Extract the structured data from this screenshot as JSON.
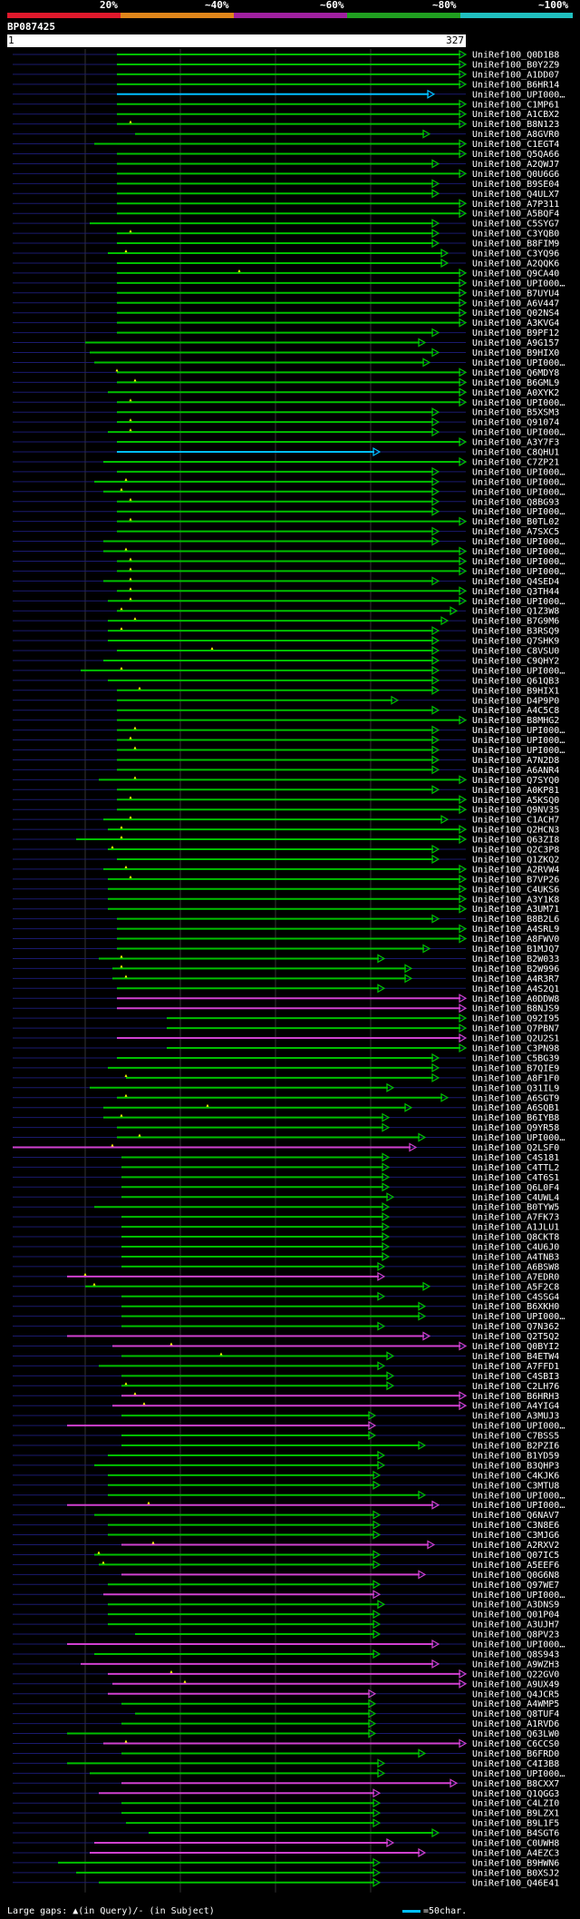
{
  "query": {
    "name": "BP087425",
    "start": "1",
    "end": "327",
    "length": 327
  },
  "scale": {
    "labels": [
      "20%",
      "~40%",
      "~60%",
      "~80%",
      "~100%"
    ],
    "colors": [
      "#e0192c",
      "#e0861a",
      "#a020a0",
      "#20a020",
      "#20c0c0"
    ]
  },
  "colors": {
    "high": "#00c000",
    "mid": "#d040d0",
    "cyan": "#00bfff",
    "gap_marker": "#ffff00"
  },
  "footer": {
    "gaps_text": "Large gaps: ▲(in Query)/- (in Subject)",
    "legend_text": "=50char."
  },
  "hits": [
    {
      "name": "UniRef100_Q0D1B8",
      "qs": 0.23,
      "qe": 1.0,
      "c": "g"
    },
    {
      "name": "UniRef100_B0Y2Z9",
      "qs": 0.23,
      "qe": 1.0,
      "c": "g"
    },
    {
      "name": "UniRef100_A1DD07",
      "qs": 0.23,
      "qe": 1.0,
      "c": "g"
    },
    {
      "name": "UniRef100_B6HR14",
      "qs": 0.23,
      "qe": 1.0,
      "c": "g"
    },
    {
      "name": "UniRef100_UPI000…",
      "qs": 0.23,
      "qe": 0.93,
      "c": "c"
    },
    {
      "name": "UniRef100_C1MP61",
      "qs": 0.23,
      "qe": 1.0,
      "c": "g"
    },
    {
      "name": "UniRef100_A1CBX2",
      "qs": 0.23,
      "qe": 1.0,
      "c": "g"
    },
    {
      "name": "UniRef100_B8N123",
      "qs": 0.23,
      "qe": 1.0,
      "c": "g",
      "gap": 0.26
    },
    {
      "name": "UniRef100_A8GVR0",
      "qs": 0.27,
      "qe": 0.92,
      "c": "g"
    },
    {
      "name": "UniRef100_C1EGT4",
      "qs": 0.18,
      "qe": 1.0,
      "c": "g"
    },
    {
      "name": "UniRef100_Q5QA66",
      "qs": 0.23,
      "qe": 1.0,
      "c": "g"
    },
    {
      "name": "UniRef100_A2QWJ7",
      "qs": 0.23,
      "qe": 0.94,
      "c": "g"
    },
    {
      "name": "UniRef100_Q0U6G6",
      "qs": 0.23,
      "qe": 1.0,
      "c": "g"
    },
    {
      "name": "UniRef100_B9SE04",
      "qs": 0.23,
      "qe": 0.94,
      "c": "g"
    },
    {
      "name": "UniRef100_Q4ULX7",
      "qs": 0.23,
      "qe": 0.94,
      "c": "g"
    },
    {
      "name": "UniRef100_A7P311",
      "qs": 0.23,
      "qe": 1.0,
      "c": "g"
    },
    {
      "name": "UniRef100_A5BQF4",
      "qs": 0.23,
      "qe": 1.0,
      "c": "g"
    },
    {
      "name": "UniRef100_C5SYG7",
      "qs": 0.17,
      "qe": 0.94,
      "c": "g"
    },
    {
      "name": "UniRef100_C3YQB0",
      "qs": 0.23,
      "qe": 0.94,
      "c": "g",
      "gap": 0.26
    },
    {
      "name": "UniRef100_B8FIM9",
      "qs": 0.23,
      "qe": 0.94,
      "c": "g"
    },
    {
      "name": "UniRef100_C3YQ96",
      "qs": 0.21,
      "qe": 0.96,
      "c": "g",
      "gap": 0.25
    },
    {
      "name": "UniRef100_A2QQK6",
      "qs": 0.23,
      "qe": 0.96,
      "c": "g"
    },
    {
      "name": "UniRef100_Q9CA40",
      "qs": 0.23,
      "qe": 1.0,
      "c": "g",
      "gap": 0.5
    },
    {
      "name": "UniRef100_UPI000…",
      "qs": 0.23,
      "qe": 1.0,
      "c": "g"
    },
    {
      "name": "UniRef100_B7UYU4",
      "qs": 0.23,
      "qe": 1.0,
      "c": "g"
    },
    {
      "name": "UniRef100_A6V447",
      "qs": 0.23,
      "qe": 1.0,
      "c": "g"
    },
    {
      "name": "UniRef100_Q02NS4",
      "qs": 0.23,
      "qe": 1.0,
      "c": "g"
    },
    {
      "name": "UniRef100_A3KVG4",
      "qs": 0.23,
      "qe": 1.0,
      "c": "g"
    },
    {
      "name": "UniRef100_B9PF12",
      "qs": 0.23,
      "qe": 0.94,
      "c": "g"
    },
    {
      "name": "UniRef100_A9G157",
      "qs": 0.16,
      "qe": 0.91,
      "c": "g"
    },
    {
      "name": "UniRef100_B9HIX0",
      "qs": 0.17,
      "qe": 0.94,
      "c": "g"
    },
    {
      "name": "UniRef100_UPI000…",
      "qs": 0.18,
      "qe": 0.92,
      "c": "g"
    },
    {
      "name": "UniRef100_Q6MDY8",
      "qs": 0.23,
      "qe": 1.0,
      "c": "g",
      "gap": 0.23
    },
    {
      "name": "UniRef100_B6GML9",
      "qs": 0.23,
      "qe": 1.0,
      "c": "g",
      "gap": 0.27
    },
    {
      "name": "UniRef100_A0XYK2",
      "qs": 0.21,
      "qe": 1.0,
      "c": "g"
    },
    {
      "name": "UniRef100_UPI000…",
      "qs": 0.23,
      "qe": 1.0,
      "c": "g",
      "gap": 0.26
    },
    {
      "name": "UniRef100_B5XSM3",
      "qs": 0.23,
      "qe": 0.94,
      "c": "g"
    },
    {
      "name": "UniRef100_Q91074",
      "qs": 0.23,
      "qe": 0.94,
      "c": "g",
      "gap": 0.26
    },
    {
      "name": "UniRef100_UPI000…",
      "qs": 0.21,
      "qe": 0.94,
      "c": "g",
      "gap": 0.26
    },
    {
      "name": "UniRef100_A3Y7F3",
      "qs": 0.23,
      "qe": 1.0,
      "c": "g"
    },
    {
      "name": "UniRef100_C8QHU1",
      "qs": 0.23,
      "qe": 0.81,
      "c": "c"
    },
    {
      "name": "UniRef100_C7ZP21",
      "qs": 0.2,
      "qe": 1.0,
      "c": "g"
    },
    {
      "name": "UniRef100_UPI000…",
      "qs": 0.23,
      "qe": 0.94,
      "c": "g"
    },
    {
      "name": "UniRef100_UPI000…",
      "qs": 0.18,
      "qe": 0.94,
      "c": "g",
      "gap": 0.25
    },
    {
      "name": "UniRef100_UPI000…",
      "qs": 0.2,
      "qe": 0.94,
      "c": "g",
      "gap": 0.24
    },
    {
      "name": "UniRef100_Q8BG93",
      "qs": 0.23,
      "qe": 0.94,
      "c": "g",
      "gap": 0.26
    },
    {
      "name": "UniRef100_UPI000…",
      "qs": 0.23,
      "qe": 0.94,
      "c": "g"
    },
    {
      "name": "UniRef100_B0TL02",
      "qs": 0.23,
      "qe": 1.0,
      "c": "g",
      "gap": 0.26
    },
    {
      "name": "UniRef100_A7SXC5",
      "qs": 0.23,
      "qe": 0.94,
      "c": "g"
    },
    {
      "name": "UniRef100_UPI000…",
      "qs": 0.2,
      "qe": 0.94,
      "c": "g"
    },
    {
      "name": "UniRef100_UPI000…",
      "qs": 0.2,
      "qe": 1.0,
      "c": "g",
      "gap": 0.25
    },
    {
      "name": "UniRef100_UPI000…",
      "qs": 0.23,
      "qe": 1.0,
      "c": "g",
      "gap": 0.26
    },
    {
      "name": "UniRef100_UPI000…",
      "qs": 0.23,
      "qe": 1.0,
      "c": "g",
      "gap": 0.26
    },
    {
      "name": "UniRef100_Q4SED4",
      "qs": 0.2,
      "qe": 0.94,
      "c": "g",
      "gap": 0.26
    },
    {
      "name": "UniRef100_Q3TH44",
      "qs": 0.23,
      "qe": 1.0,
      "c": "g",
      "gap": 0.26
    },
    {
      "name": "UniRef100_UPI000…",
      "qs": 0.21,
      "qe": 1.0,
      "c": "g",
      "gap": 0.26
    },
    {
      "name": "UniRef100_Q1Z3W8",
      "qs": 0.23,
      "qe": 0.98,
      "c": "g",
      "gap": 0.24
    },
    {
      "name": "UniRef100_B7G9M6",
      "qs": 0.21,
      "qe": 0.96,
      "c": "g",
      "gap": 0.27
    },
    {
      "name": "UniRef100_B3RSQ9",
      "qs": 0.21,
      "qe": 0.94,
      "c": "g",
      "gap": 0.24
    },
    {
      "name": "UniRef100_Q7SHK9",
      "qs": 0.21,
      "qe": 0.94,
      "c": "g"
    },
    {
      "name": "UniRef100_C8VSU0",
      "qs": 0.23,
      "qe": 0.94,
      "c": "g",
      "gap": 0.44
    },
    {
      "name": "UniRef100_C9QHY2",
      "qs": 0.2,
      "qe": 0.94,
      "c": "g"
    },
    {
      "name": "UniRef100_UPI000…",
      "qs": 0.15,
      "qe": 0.94,
      "c": "g",
      "gap": 0.24
    },
    {
      "name": "UniRef100_Q61QB3",
      "qs": 0.21,
      "qe": 0.94,
      "c": "g"
    },
    {
      "name": "UniRef100_B9HIX1",
      "qs": 0.23,
      "qe": 0.94,
      "c": "g",
      "gap": 0.28
    },
    {
      "name": "UniRef100_D4P9P0",
      "qs": 0.23,
      "qe": 0.85,
      "c": "g"
    },
    {
      "name": "UniRef100_A4C5C8",
      "qs": 0.23,
      "qe": 0.94,
      "c": "g"
    },
    {
      "name": "UniRef100_B8MHG2",
      "qs": 0.23,
      "qe": 1.0,
      "c": "g"
    },
    {
      "name": "UniRef100_UPI000…",
      "qs": 0.23,
      "qe": 0.94,
      "c": "g",
      "gap": 0.27
    },
    {
      "name": "UniRef100_UPI000…",
      "qs": 0.23,
      "qe": 0.94,
      "c": "g",
      "gap": 0.26
    },
    {
      "name": "UniRef100_UPI000…",
      "qs": 0.23,
      "qe": 0.94,
      "c": "g",
      "gap": 0.27
    },
    {
      "name": "UniRef100_A7N2D8",
      "qs": 0.23,
      "qe": 0.94,
      "c": "g"
    },
    {
      "name": "UniRef100_A6ANR4",
      "qs": 0.23,
      "qe": 0.94,
      "c": "g"
    },
    {
      "name": "UniRef100_Q7SYQ0",
      "qs": 0.19,
      "qe": 1.0,
      "c": "g",
      "gap": 0.27
    },
    {
      "name": "UniRef100_A0KP81",
      "qs": 0.23,
      "qe": 0.94,
      "c": "g"
    },
    {
      "name": "UniRef100_A5KSQ0",
      "qs": 0.23,
      "qe": 1.0,
      "c": "g",
      "gap": 0.26
    },
    {
      "name": "UniRef100_Q9NV35",
      "qs": 0.23,
      "qe": 1.0,
      "c": "g"
    },
    {
      "name": "UniRef100_C1ACH7",
      "qs": 0.2,
      "qe": 0.96,
      "c": "g",
      "gap": 0.26
    },
    {
      "name": "UniRef100_Q2HCN3",
      "qs": 0.21,
      "qe": 1.0,
      "c": "g",
      "gap": 0.24
    },
    {
      "name": "UniRef100_Q63ZI8",
      "qs": 0.14,
      "qe": 1.0,
      "c": "g",
      "gap": 0.24
    },
    {
      "name": "UniRef100_Q2C3P8",
      "qs": 0.21,
      "qe": 0.94,
      "c": "g",
      "gap": 0.22
    },
    {
      "name": "UniRef100_Q1ZKQ2",
      "qs": 0.23,
      "qe": 0.94,
      "c": "g"
    },
    {
      "name": "UniRef100_A2RVW4",
      "qs": 0.2,
      "qe": 1.0,
      "c": "g",
      "gap": 0.25
    },
    {
      "name": "UniRef100_B7VP26",
      "qs": 0.21,
      "qe": 1.0,
      "c": "g",
      "gap": 0.26
    },
    {
      "name": "UniRef100_C4UKS6",
      "qs": 0.21,
      "qe": 1.0,
      "c": "g"
    },
    {
      "name": "UniRef100_A3Y1K8",
      "qs": 0.21,
      "qe": 1.0,
      "c": "g"
    },
    {
      "name": "UniRef100_A3UM71",
      "qs": 0.21,
      "qe": 1.0,
      "c": "g"
    },
    {
      "name": "UniRef100_B8B2L6",
      "qs": 0.23,
      "qe": 0.94,
      "c": "g"
    },
    {
      "name": "UniRef100_A4SRL9",
      "qs": 0.23,
      "qe": 1.0,
      "c": "g"
    },
    {
      "name": "UniRef100_A8FWV0",
      "qs": 0.23,
      "qe": 1.0,
      "c": "g"
    },
    {
      "name": "UniRef100_B1MJQ7",
      "qs": 0.23,
      "qe": 0.92,
      "c": "g"
    },
    {
      "name": "UniRef100_B2W033",
      "qs": 0.19,
      "qe": 0.82,
      "c": "g",
      "gap": 0.24
    },
    {
      "name": "UniRef100_B2W996",
      "qs": 0.22,
      "qe": 0.88,
      "c": "g",
      "gap": 0.24
    },
    {
      "name": "UniRef100_A4R3R7",
      "qs": 0.22,
      "qe": 0.88,
      "c": "g",
      "gap": 0.25
    },
    {
      "name": "UniRef100_A4S2Q1",
      "qs": 0.23,
      "qe": 0.82,
      "c": "g"
    },
    {
      "name": "UniRef100_A0DDW8",
      "qs": 0.23,
      "qe": 1.0,
      "c": "m"
    },
    {
      "name": "UniRef100_B8NJS9",
      "qs": 0.23,
      "qe": 1.0,
      "c": "m"
    },
    {
      "name": "UniRef100_Q92I95",
      "qs": 0.34,
      "qe": 1.0,
      "c": "g"
    },
    {
      "name": "UniRef100_Q7PBN7",
      "qs": 0.34,
      "qe": 1.0,
      "c": "g"
    },
    {
      "name": "UniRef100_Q2U2S1",
      "qs": 0.23,
      "qe": 1.0,
      "c": "m"
    },
    {
      "name": "UniRef100_C3PN98",
      "qs": 0.34,
      "qe": 1.0,
      "c": "g"
    },
    {
      "name": "UniRef100_C5BG39",
      "qs": 0.23,
      "qe": 0.94,
      "c": "g"
    },
    {
      "name": "UniRef100_B7QIE9",
      "qs": 0.21,
      "qe": 0.94,
      "c": "g"
    },
    {
      "name": "UniRef100_A8F1F0",
      "qs": 0.25,
      "qe": 0.94,
      "c": "g",
      "gap": 0.25
    },
    {
      "name": "UniRef100_Q31IL9",
      "qs": 0.17,
      "qe": 0.84,
      "c": "g"
    },
    {
      "name": "UniRef100_A6SGT9",
      "qs": 0.23,
      "qe": 0.96,
      "c": "g",
      "gap": 0.25
    },
    {
      "name": "UniRef100_A6SQB1",
      "qs": 0.2,
      "qe": 0.88,
      "c": "g",
      "gap": 0.43
    },
    {
      "name": "UniRef100_B6IYB8",
      "qs": 0.2,
      "qe": 0.83,
      "c": "g",
      "gap": 0.24
    },
    {
      "name": "UniRef100_Q9YR58",
      "qs": 0.23,
      "qe": 0.83,
      "c": "g"
    },
    {
      "name": "UniRef100_UPI000…",
      "qs": 0.23,
      "qe": 0.91,
      "c": "g",
      "gap": 0.28
    },
    {
      "name": "UniRef100_Q2LSF0",
      "qs": 0.0,
      "qe": 0.89,
      "c": "m",
      "gap": 0.22
    },
    {
      "name": "UniRef100_C4S181",
      "qs": 0.24,
      "qe": 0.83,
      "c": "g"
    },
    {
      "name": "UniRef100_C4TTL2",
      "qs": 0.24,
      "qe": 0.83,
      "c": "g"
    },
    {
      "name": "UniRef100_C4T6S1",
      "qs": 0.24,
      "qe": 0.83,
      "c": "g"
    },
    {
      "name": "UniRef100_Q6L0F4",
      "qs": 0.24,
      "qe": 0.83,
      "c": "g"
    },
    {
      "name": "UniRef100_C4UWL4",
      "qs": 0.24,
      "qe": 0.84,
      "c": "g"
    },
    {
      "name": "UniRef100_B0TYW5",
      "qs": 0.18,
      "qe": 0.83,
      "c": "g"
    },
    {
      "name": "UniRef100_A7FK73",
      "qs": 0.24,
      "qe": 0.83,
      "c": "g"
    },
    {
      "name": "UniRef100_A1JLU1",
      "qs": 0.24,
      "qe": 0.83,
      "c": "g"
    },
    {
      "name": "UniRef100_Q8CKT8",
      "qs": 0.24,
      "qe": 0.83,
      "c": "g"
    },
    {
      "name": "UniRef100_C4U6J0",
      "qs": 0.24,
      "qe": 0.83,
      "c": "g"
    },
    {
      "name": "UniRef100_A4TNB3",
      "qs": 0.24,
      "qe": 0.83,
      "c": "g"
    },
    {
      "name": "UniRef100_A6BSW8",
      "qs": 0.24,
      "qe": 0.82,
      "c": "g"
    },
    {
      "name": "UniRef100_A7EDR0",
      "qs": 0.12,
      "qe": 0.82,
      "c": "m",
      "gap": 0.16
    },
    {
      "name": "UniRef100_A5F2C8",
      "qs": 0.16,
      "qe": 0.92,
      "c": "g",
      "gap": 0.18
    },
    {
      "name": "UniRef100_C4SSG4",
      "qs": 0.24,
      "qe": 0.82,
      "c": "g"
    },
    {
      "name": "UniRef100_B6XKH0",
      "qs": 0.24,
      "qe": 0.91,
      "c": "g"
    },
    {
      "name": "UniRef100_UPI000…",
      "qs": 0.24,
      "qe": 0.91,
      "c": "g"
    },
    {
      "name": "UniRef100_Q7N362",
      "qs": 0.24,
      "qe": 0.82,
      "c": "g"
    },
    {
      "name": "UniRef100_Q2T5Q2",
      "qs": 0.12,
      "qe": 0.92,
      "c": "m"
    },
    {
      "name": "UniRef100_Q0BYI2",
      "qs": 0.22,
      "qe": 1.0,
      "c": "m",
      "gap": 0.35
    },
    {
      "name": "UniRef100_B4ETW4",
      "qs": 0.24,
      "qe": 0.84,
      "c": "g",
      "gap": 0.46
    },
    {
      "name": "UniRef100_A7FFD1",
      "qs": 0.19,
      "qe": 0.82,
      "c": "g"
    },
    {
      "name": "UniRef100_C4SBI3",
      "qs": 0.24,
      "qe": 0.84,
      "c": "g"
    },
    {
      "name": "UniRef100_C2LH76",
      "qs": 0.24,
      "qe": 0.84,
      "c": "g",
      "gap": 0.25
    },
    {
      "name": "UniRef100_B6HRH3",
      "qs": 0.24,
      "qe": 1.0,
      "c": "m",
      "gap": 0.27
    },
    {
      "name": "UniRef100_A4YIG4",
      "qs": 0.22,
      "qe": 1.0,
      "c": "m",
      "gap": 0.29
    },
    {
      "name": "UniRef100_A3MUJ3",
      "qs": 0.24,
      "qe": 0.8,
      "c": "g"
    },
    {
      "name": "UniRef100_UPI000…",
      "qs": 0.12,
      "qe": 0.8,
      "c": "m"
    },
    {
      "name": "UniRef100_C7BSS5",
      "qs": 0.24,
      "qe": 0.8,
      "c": "g"
    },
    {
      "name": "UniRef100_B2PZI6",
      "qs": 0.24,
      "qe": 0.91,
      "c": "g"
    },
    {
      "name": "UniRef100_B1YD59",
      "qs": 0.21,
      "qe": 0.82,
      "c": "g"
    },
    {
      "name": "UniRef100_B3QHP3",
      "qs": 0.18,
      "qe": 0.82,
      "c": "g"
    },
    {
      "name": "UniRef100_C4KJK6",
      "qs": 0.21,
      "qe": 0.81,
      "c": "g"
    },
    {
      "name": "UniRef100_C3MTU8",
      "qs": 0.21,
      "qe": 0.81,
      "c": "g"
    },
    {
      "name": "UniRef100_UPI000…",
      "qs": 0.21,
      "qe": 0.91,
      "c": "g"
    },
    {
      "name": "UniRef100_UPI000…",
      "qs": 0.12,
      "qe": 0.94,
      "c": "m",
      "gap": 0.3
    },
    {
      "name": "UniRef100_Q6NAV7",
      "qs": 0.18,
      "qe": 0.81,
      "c": "g"
    },
    {
      "name": "UniRef100_C3N8E6",
      "qs": 0.21,
      "qe": 0.81,
      "c": "g"
    },
    {
      "name": "UniRef100_C3MJG6",
      "qs": 0.21,
      "qe": 0.81,
      "c": "g"
    },
    {
      "name": "UniRef100_A2RXV2",
      "qs": 0.24,
      "qe": 0.93,
      "c": "m",
      "gap": 0.31
    },
    {
      "name": "UniRef100_Q07IC5",
      "qs": 0.18,
      "qe": 0.81,
      "c": "g",
      "gap": 0.19
    },
    {
      "name": "UniRef100_A5EEF6",
      "qs": 0.19,
      "qe": 0.81,
      "c": "g",
      "gap": 0.2
    },
    {
      "name": "UniRef100_Q0G6N8",
      "qs": 0.24,
      "qe": 0.91,
      "c": "m"
    },
    {
      "name": "UniRef100_Q97WE7",
      "qs": 0.21,
      "qe": 0.81,
      "c": "g"
    },
    {
      "name": "UniRef100_UPI000…",
      "qs": 0.2,
      "qe": 0.81,
      "c": "m"
    },
    {
      "name": "UniRef100_A3DNS9",
      "qs": 0.21,
      "qe": 0.82,
      "c": "g"
    },
    {
      "name": "UniRef100_Q01P04",
      "qs": 0.21,
      "qe": 0.81,
      "c": "g"
    },
    {
      "name": "UniRef100_A3UJH7",
      "qs": 0.21,
      "qe": 0.81,
      "c": "g"
    },
    {
      "name": "UniRef100_Q8PV23",
      "qs": 0.27,
      "qe": 0.81,
      "c": "g"
    },
    {
      "name": "UniRef100_UPI000…",
      "qs": 0.12,
      "qe": 0.94,
      "c": "m"
    },
    {
      "name": "UniRef100_Q8S943",
      "qs": 0.18,
      "qe": 0.81,
      "c": "g"
    },
    {
      "name": "UniRef100_A9WZH3",
      "qs": 0.15,
      "qe": 0.94,
      "c": "m"
    },
    {
      "name": "UniRef100_Q22GV0",
      "qs": 0.21,
      "qe": 1.0,
      "c": "m",
      "gap": 0.35
    },
    {
      "name": "UniRef100_A9UX49",
      "qs": 0.22,
      "qe": 1.0,
      "c": "m",
      "gap": 0.38
    },
    {
      "name": "UniRef100_Q4JCR5",
      "qs": 0.21,
      "qe": 0.8,
      "c": "m"
    },
    {
      "name": "UniRef100_A4WMP5",
      "qs": 0.24,
      "qe": 0.8,
      "c": "g"
    },
    {
      "name": "UniRef100_Q8TUF4",
      "qs": 0.27,
      "qe": 0.8,
      "c": "g"
    },
    {
      "name": "UniRef100_A1RVD6",
      "qs": 0.24,
      "qe": 0.8,
      "c": "g"
    },
    {
      "name": "UniRef100_Q63LW0",
      "qs": 0.12,
      "qe": 0.8,
      "c": "g"
    },
    {
      "name": "UniRef100_C6CCS0",
      "qs": 0.2,
      "qe": 1.0,
      "c": "m",
      "gap": 0.25
    },
    {
      "name": "UniRef100_B6FRD0",
      "qs": 0.24,
      "qe": 0.91,
      "c": "g"
    },
    {
      "name": "UniRef100_C4I3B8",
      "qs": 0.12,
      "qe": 0.82,
      "c": "g"
    },
    {
      "name": "UniRef100_UPI000…",
      "qs": 0.17,
      "qe": 0.82,
      "c": "g"
    },
    {
      "name": "UniRef100_B8CXX7",
      "qs": 0.24,
      "qe": 0.98,
      "c": "m"
    },
    {
      "name": "UniRef100_Q1QGG3",
      "qs": 0.19,
      "qe": 0.81,
      "c": "m"
    },
    {
      "name": "UniRef100_C4LZI0",
      "qs": 0.24,
      "qe": 0.81,
      "c": "g"
    },
    {
      "name": "UniRef100_B9LZX1",
      "qs": 0.24,
      "qe": 0.81,
      "c": "g"
    },
    {
      "name": "UniRef100_B9L1F5",
      "qs": 0.25,
      "qe": 0.81,
      "c": "g"
    },
    {
      "name": "UniRef100_B4SGT6",
      "qs": 0.3,
      "qe": 0.94,
      "c": "g"
    },
    {
      "name": "UniRef100_C0UWH8",
      "qs": 0.18,
      "qe": 0.84,
      "c": "m"
    },
    {
      "name": "UniRef100_A4EZC3",
      "qs": 0.17,
      "qe": 0.91,
      "c": "m"
    },
    {
      "name": "UniRef100_B9HWN6",
      "qs": 0.1,
      "qe": 0.81,
      "c": "g"
    },
    {
      "name": "UniRef100_B0XSJ2",
      "qs": 0.14,
      "qe": 0.81,
      "c": "g"
    },
    {
      "name": "UniRef100_Q46E41",
      "qs": 0.19,
      "qe": 0.81,
      "c": "g"
    }
  ]
}
